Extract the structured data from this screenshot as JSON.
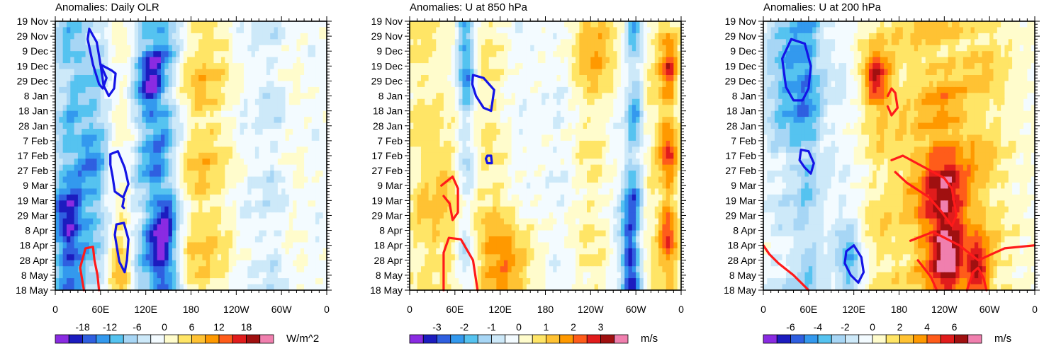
{
  "chart_data": [
    {
      "type": "heatmap",
      "title": "Anomalies: Daily OLR",
      "xlabel": "",
      "ylabel": "",
      "x_ticks": [
        "0",
        "60E",
        "120E",
        "180",
        "120W",
        "60W",
        "0"
      ],
      "y_ticks": [
        "19 Nov",
        "29 Nov",
        "9 Dec",
        "19 Dec",
        "29 Dec",
        "8 Jan",
        "18 Jan",
        "28 Jan",
        "7 Feb",
        "17 Feb",
        "27 Feb",
        "9 Mar",
        "19 Mar",
        "29 Mar",
        "8 Apr",
        "18 Apr",
        "28 Apr",
        "8 May",
        "18 May"
      ],
      "colorbar": {
        "units": "W/m^2",
        "levels": [
          -21,
          -18,
          -15,
          -12,
          -9,
          -6,
          -3,
          0,
          3,
          6,
          9,
          12,
          15,
          18,
          21
        ],
        "labels": [
          "-18",
          "-12",
          "-6",
          "0",
          "6",
          "12",
          "18"
        ],
        "colors": [
          "#8a2be2",
          "#1c1cbf",
          "#2f5fe0",
          "#3399ee",
          "#55c3f0",
          "#a7d6f5",
          "#cde9f9",
          "#f3fbff",
          "#fffccc",
          "#ffe566",
          "#ffc233",
          "#ff9900",
          "#ff5c1a",
          "#e11c1c",
          "#a01010",
          "#f07fae"
        ]
      },
      "bands": [
        {
          "lon": 10,
          "width": 18,
          "v": -7
        },
        {
          "lon": 25,
          "width": 10,
          "v": -4
        },
        {
          "lon": 45,
          "width": 16,
          "v": -6
        },
        {
          "lon": 60,
          "width": 12,
          "v": -3
        },
        {
          "lon": 90,
          "width": 10,
          "v": 3
        },
        {
          "lon": 110,
          "width": 14,
          "v": -5
        },
        {
          "lon": 130,
          "width": 12,
          "v": -11
        },
        {
          "lon": 148,
          "width": 10,
          "v": -8
        },
        {
          "lon": 165,
          "width": 12,
          "v": -4
        },
        {
          "lon": 185,
          "width": 22,
          "v": 6
        },
        {
          "lon": 220,
          "width": 25,
          "v": 3
        },
        {
          "lon": 250,
          "width": 15,
          "v": -3
        },
        {
          "lon": 290,
          "width": 18,
          "v": -5
        },
        {
          "lon": 315,
          "width": 14,
          "v": 2
        },
        {
          "lon": 345,
          "width": 16,
          "v": -2
        }
      ],
      "blobs": [
        {
          "lon": 15,
          "day": 140,
          "rlon": 14,
          "rday": 25,
          "v": -12
        },
        {
          "lon": 50,
          "day": 95,
          "rlon": 12,
          "rday": 30,
          "v": -6
        },
        {
          "lon": 85,
          "day": 165,
          "rlon": 10,
          "rday": 15,
          "v": 8
        },
        {
          "lon": 125,
          "day": 40,
          "rlon": 12,
          "rday": 20,
          "v": -9
        },
        {
          "lon": 145,
          "day": 150,
          "rlon": 12,
          "rday": 25,
          "v": -12
        }
      ],
      "contours": [
        {
          "sign": "neg",
          "points": [
            [
              45,
              5
            ],
            [
              55,
              14
            ],
            [
              60,
              29
            ],
            [
              68,
              38
            ],
            [
              63,
              45
            ],
            [
              58,
              42
            ],
            [
              50,
              29
            ],
            [
              43,
              12
            ]
          ]
        },
        {
          "sign": "neg",
          "points": [
            [
              60,
              29
            ],
            [
              75,
              33
            ],
            [
              80,
              35
            ],
            [
              78,
              45
            ],
            [
              71,
              50
            ],
            [
              64,
              43
            ]
          ]
        },
        {
          "sign": "neg",
          "points": [
            [
              73,
              89
            ],
            [
              83,
              87
            ],
            [
              92,
              98
            ],
            [
              97,
              109
            ],
            [
              90,
              118
            ],
            [
              79,
              114
            ],
            [
              76,
              104
            ],
            [
              73,
              96
            ]
          ]
        },
        {
          "sign": "neg",
          "points": [
            [
              91,
              119
            ],
            [
              89,
              124
            ],
            [
              91,
              125
            ]
          ]
        },
        {
          "sign": "neg",
          "points": [
            [
              81,
              136
            ],
            [
              91,
              135
            ],
            [
              97,
              146
            ],
            [
              95,
              160
            ],
            [
              92,
              168
            ],
            [
              85,
              161
            ],
            [
              82,
              152
            ],
            [
              79,
              143
            ]
          ]
        },
        {
          "sign": "pos",
          "points": [
            [
              38,
              180
            ],
            [
              33,
              165
            ],
            [
              40,
              152
            ],
            [
              50,
              151
            ],
            [
              52,
              160
            ],
            [
              56,
              170
            ],
            [
              58,
              180
            ]
          ]
        }
      ]
    },
    {
      "type": "heatmap",
      "title": "Anomalies: U at 850 hPa",
      "xlabel": "",
      "ylabel": "",
      "x_ticks": [
        "0",
        "60E",
        "120E",
        "180",
        "120W",
        "60W",
        "0"
      ],
      "y_ticks": [
        "19 Nov",
        "29 Nov",
        "9 Dec",
        "19 Dec",
        "29 Dec",
        "8 Jan",
        "18 Jan",
        "28 Jan",
        "7 Feb",
        "17 Feb",
        "27 Feb",
        "9 Mar",
        "19 Mar",
        "29 Mar",
        "8 Apr",
        "18 Apr",
        "28 Apr",
        "8 May",
        "18 May"
      ],
      "colorbar": {
        "units": "m/s",
        "levels": [
          -3.5,
          -3,
          -2.5,
          -2,
          -1.5,
          -1,
          -0.5,
          0,
          0.5,
          1,
          1.5,
          2,
          2.5,
          3,
          3.5
        ],
        "labels": [
          "-3",
          "-2",
          "-1",
          "0",
          "1",
          "2",
          "3"
        ],
        "colors": [
          "#8a2be2",
          "#1c1cbf",
          "#2f5fe0",
          "#3399ee",
          "#55c3f0",
          "#a7d6f5",
          "#cde9f9",
          "#f3fbff",
          "#fffccc",
          "#ffe566",
          "#ffc233",
          "#ff9900",
          "#ff5c1a",
          "#e11c1c",
          "#a01010",
          "#f07fae"
        ]
      },
      "bands": [
        {
          "lon": 15,
          "width": 15,
          "v": 0.7
        },
        {
          "lon": 45,
          "width": 12,
          "v": 0.3
        },
        {
          "lon": 75,
          "width": 8,
          "v": -1.2
        },
        {
          "lon": 105,
          "width": 18,
          "v": 0.6
        },
        {
          "lon": 150,
          "width": 15,
          "v": -0.4
        },
        {
          "lon": 200,
          "width": 16,
          "v": -0.5
        },
        {
          "lon": 240,
          "width": 20,
          "v": 0.6
        },
        {
          "lon": 280,
          "width": 16,
          "v": -0.4
        },
        {
          "lon": 298,
          "width": 8,
          "v": -1.8
        },
        {
          "lon": 320,
          "width": 10,
          "v": 0.5
        },
        {
          "lon": 343,
          "width": 9,
          "v": 2.3
        }
      ],
      "blobs": [
        {
          "lon": 75,
          "day": 15,
          "rlon": 8,
          "rday": 30,
          "v": -1.5
        },
        {
          "lon": 130,
          "day": 165,
          "rlon": 25,
          "rday": 25,
          "v": 1.8
        },
        {
          "lon": 45,
          "day": 120,
          "rlon": 20,
          "rday": 30,
          "v": 0.8
        },
        {
          "lon": 290,
          "day": 150,
          "rlon": 8,
          "rday": 25,
          "v": -2
        },
        {
          "lon": 250,
          "day": 15,
          "rlon": 25,
          "rday": 20,
          "v": 1.2
        }
      ],
      "contours": [
        {
          "sign": "neg",
          "points": [
            [
              84,
              36
            ],
            [
              98,
              38
            ],
            [
              112,
              46
            ],
            [
              108,
              60
            ],
            [
              98,
              58
            ],
            [
              88,
              50
            ],
            [
              83,
              42
            ]
          ]
        },
        {
          "sign": "neg",
          "points": [
            [
              103,
              90
            ],
            [
              108,
              90
            ],
            [
              109,
              95
            ],
            [
              103,
              95
            ],
            [
              101,
              92
            ]
          ]
        },
        {
          "sign": "pos",
          "points": [
            [
              42,
              110
            ],
            [
              57,
              104
            ],
            [
              64,
              112
            ],
            [
              64,
              128
            ],
            [
              57,
              133
            ],
            [
              53,
              122
            ],
            [
              45,
              117
            ]
          ]
        },
        {
          "sign": "pos",
          "points": [
            [
              45,
              180
            ],
            [
              45,
              155
            ],
            [
              52,
              145
            ],
            [
              68,
              146
            ],
            [
              84,
              160
            ],
            [
              90,
              180
            ]
          ]
        }
      ]
    },
    {
      "type": "heatmap",
      "title": "Anomalies: U at 200 hPa",
      "xlabel": "",
      "ylabel": "",
      "x_ticks": [
        "0",
        "60E",
        "120E",
        "180",
        "120W",
        "60W",
        "0"
      ],
      "y_ticks": [
        "19 Nov",
        "29 Nov",
        "9 Dec",
        "19 Dec",
        "29 Dec",
        "8 Jan",
        "18 Jan",
        "28 Jan",
        "7 Feb",
        "17 Feb",
        "27 Feb",
        "9 Mar",
        "19 Mar",
        "29 Mar",
        "8 Apr",
        "18 Apr",
        "28 Apr",
        "8 May",
        "18 May"
      ],
      "colorbar": {
        "units": "m/s",
        "levels": [
          -7,
          -6,
          -5,
          -4,
          -3,
          -2,
          -1,
          0,
          1,
          2,
          3,
          4,
          5,
          6,
          7
        ],
        "labels": [
          "-6",
          "-4",
          "-2",
          "0",
          "2",
          "4",
          "6"
        ],
        "colors": [
          "#8a2be2",
          "#1c1cbf",
          "#2f5fe0",
          "#3399ee",
          "#55c3f0",
          "#a7d6f5",
          "#cde9f9",
          "#f3fbff",
          "#fffccc",
          "#ffe566",
          "#ffc233",
          "#ff9900",
          "#ff5c1a",
          "#e11c1c",
          "#a01010",
          "#f07fae"
        ]
      },
      "bands": [
        {
          "lon": 30,
          "width": 25,
          "v": -1.5
        },
        {
          "lon": 60,
          "width": 12,
          "v": -2
        },
        {
          "lon": 100,
          "width": 25,
          "v": -1
        },
        {
          "lon": 150,
          "width": 20,
          "v": 1.5
        },
        {
          "lon": 195,
          "width": 25,
          "v": 1.5
        },
        {
          "lon": 240,
          "width": 22,
          "v": 2.5
        },
        {
          "lon": 290,
          "width": 20,
          "v": 2
        },
        {
          "lon": 325,
          "width": 18,
          "v": 0.5
        }
      ],
      "blobs": [
        {
          "lon": 40,
          "day": 40,
          "rlon": 25,
          "rday": 30,
          "v": -3
        },
        {
          "lon": 150,
          "day": 40,
          "rlon": 12,
          "rday": 12,
          "v": 5
        },
        {
          "lon": 240,
          "day": 120,
          "rlon": 25,
          "rday": 30,
          "v": 4
        },
        {
          "lon": 245,
          "day": 160,
          "rlon": 15,
          "rday": 20,
          "v": 3.5
        },
        {
          "lon": 285,
          "day": 170,
          "rlon": 10,
          "rday": 15,
          "v": 4.5
        },
        {
          "lon": 115,
          "day": 160,
          "rlon": 12,
          "rday": 20,
          "v": -3
        }
      ],
      "contours": [
        {
          "sign": "neg",
          "points": [
            [
              30,
              44
            ],
            [
              25,
              25
            ],
            [
              37,
              12
            ],
            [
              55,
              15
            ],
            [
              63,
              30
            ],
            [
              60,
              45
            ],
            [
              52,
              53
            ],
            [
              40,
              53
            ]
          ]
        },
        {
          "sign": "neg",
          "points": [
            [
              50,
              86
            ],
            [
              60,
              87
            ],
            [
              67,
              95
            ],
            [
              63,
              102
            ],
            [
              55,
              98
            ],
            [
              48,
              93
            ]
          ]
        },
        {
          "sign": "neg",
          "points": [
            [
              110,
              154
            ],
            [
              120,
              150
            ],
            [
              130,
              158
            ],
            [
              133,
              168
            ],
            [
              126,
              175
            ],
            [
              116,
              170
            ],
            [
              108,
              162
            ]
          ]
        },
        {
          "sign": "pos",
          "points": [
            [
              165,
              50
            ],
            [
              170,
              45
            ],
            [
              175,
              48
            ],
            [
              178,
              58
            ],
            [
              170,
              63
            ],
            [
              165,
              57
            ]
          ]
        },
        {
          "sign": "pos",
          "points": [
            [
              170,
              93
            ],
            [
              185,
              90
            ],
            [
              218,
              99
            ],
            [
              240,
              105
            ],
            [
              250,
              112
            ],
            [
              256,
              130
            ],
            [
              250,
              137
            ],
            [
              237,
              128
            ],
            [
              220,
              118
            ],
            [
              190,
              108
            ],
            [
              175,
              101
            ]
          ]
        },
        {
          "sign": "pos",
          "points": [
            [
              0,
              150
            ],
            [
              8,
              156
            ],
            [
              20,
              162
            ],
            [
              40,
              170
            ],
            [
              60,
              180
            ]
          ]
        },
        {
          "sign": "pos",
          "points": [
            [
              195,
              147
            ],
            [
              225,
              141
            ],
            [
              260,
              150
            ],
            [
              285,
              160
            ],
            [
              320,
              152
            ],
            [
              360,
              150
            ]
          ]
        },
        {
          "sign": "pos",
          "points": [
            [
              230,
              180
            ],
            [
              222,
              171
            ],
            [
              205,
              160
            ]
          ]
        },
        {
          "sign": "pos",
          "points": [
            [
              270,
              180
            ],
            [
              278,
              168
            ],
            [
              285,
              165
            ],
            [
              292,
              172
            ],
            [
              296,
              180
            ]
          ]
        }
      ]
    }
  ]
}
